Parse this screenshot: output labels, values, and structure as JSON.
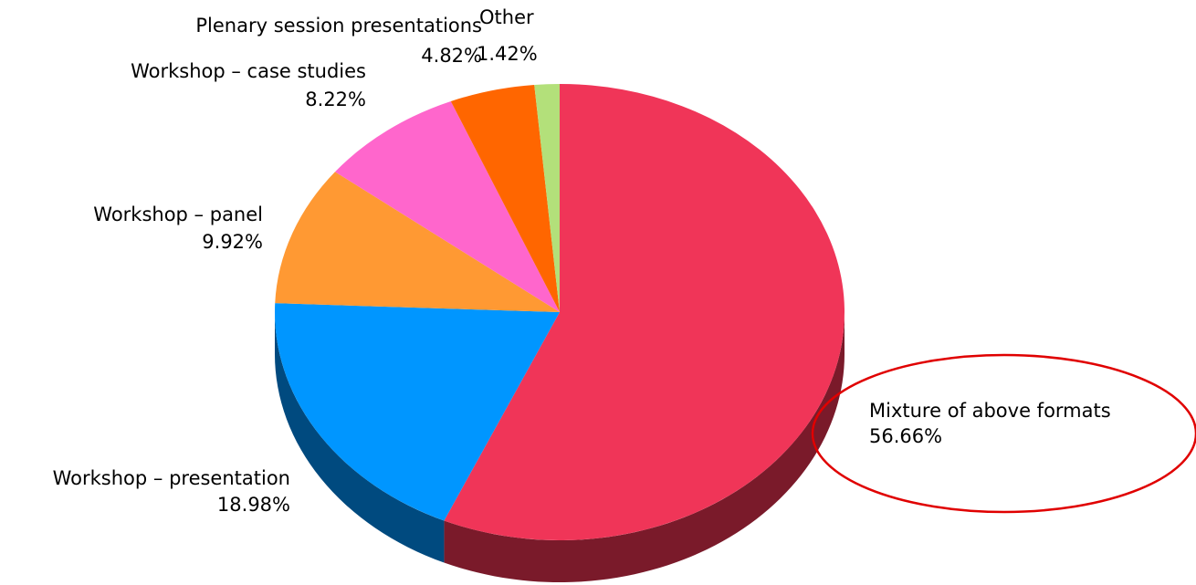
{
  "chart_data": {
    "type": "pie",
    "style": "3d",
    "slices": [
      {
        "name": "Mixture of above formats",
        "value": 56.66,
        "label": "56.66%",
        "color": "#f03558",
        "side_color": "#7a1a2a"
      },
      {
        "name": "Workshop – presentation",
        "value": 18.98,
        "label": "18.98%",
        "color": "#0096ff",
        "side_color": "#004a7f"
      },
      {
        "name": "Workshop – panel",
        "value": 9.92,
        "label": "9.92%",
        "color": "#ff9933",
        "side_color": "#7f4c19"
      },
      {
        "name": "Workshop – case studies",
        "value": 8.22,
        "label": "8.22%",
        "color": "#ff66cc",
        "side_color": "#7f3366"
      },
      {
        "name": "Plenary session presentations",
        "value": 4.82,
        "label": "4.82%",
        "color": "#ff6600",
        "side_color": "#7f3300"
      },
      {
        "name": "Other",
        "value": 1.42,
        "label": "1.42%",
        "color": "#b3e07a",
        "side_color": "#5a703d"
      }
    ],
    "highlight": {
      "slice": "Mixture of above formats",
      "shape": "ellipse",
      "color": "#e00000"
    }
  }
}
